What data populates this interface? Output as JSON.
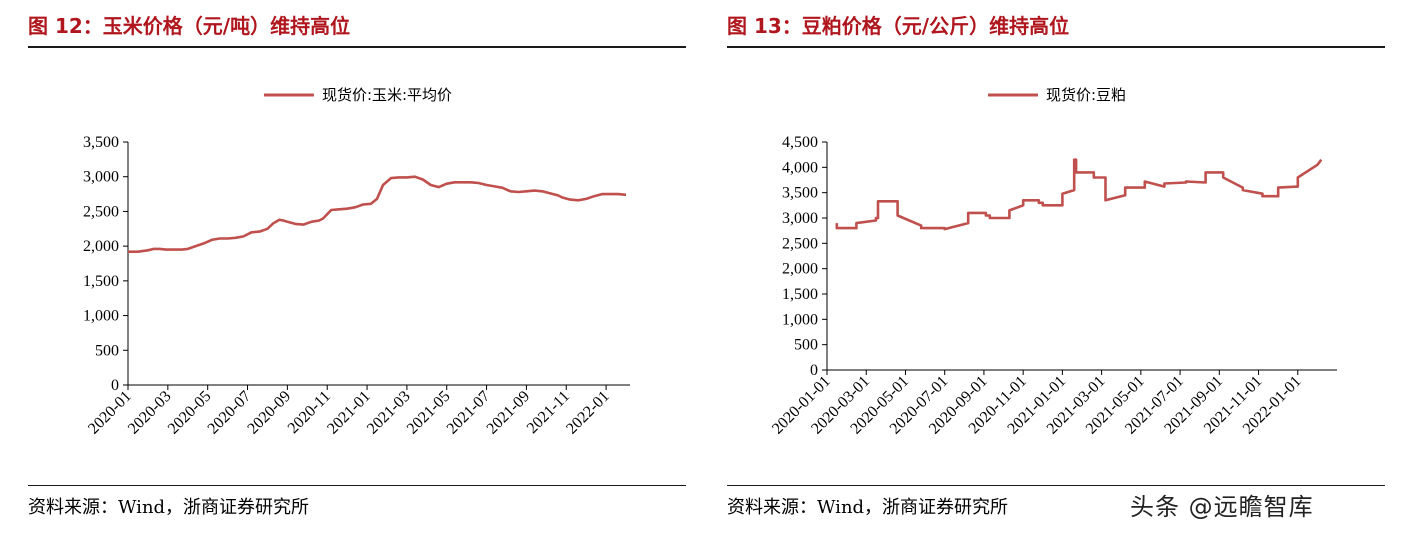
{
  "left": {
    "title": "图 12：玉米价格（元/吨）维持高位",
    "source": "资料来源：Wind，浙商证券研究所"
  },
  "right": {
    "title": "图 13：豆粕价格（元/公斤）维持高位",
    "source": "资料来源：Wind，浙商证券研究所"
  },
  "watermark": "头条 @远瞻智库",
  "colors": {
    "series": "#c0504d",
    "title": "#b0161d",
    "axis": "#000000"
  },
  "chart_data": [
    {
      "type": "line",
      "title": "",
      "legend": {
        "position": "top-center"
      },
      "ylim": [
        0,
        3500
      ],
      "yticks": [
        0,
        500,
        1000,
        1500,
        2000,
        2500,
        3000,
        3500
      ],
      "ytick_labels": [
        "0",
        "500",
        "1,000",
        "1,500",
        "2,000",
        "2,500",
        "3,000",
        "3,500"
      ],
      "xlim": [
        0,
        25.2
      ],
      "xticks": [
        0,
        2,
        4,
        6,
        8,
        10,
        12,
        14,
        16,
        18,
        20,
        22,
        24
      ],
      "xtick_labels": [
        "2020-01",
        "2020-03",
        "2020-05",
        "2020-07",
        "2020-09",
        "2020-11",
        "2021-01",
        "2021-03",
        "2021-05",
        "2021-07",
        "2021-09",
        "2021-11",
        "2022-01"
      ],
      "grid": false,
      "series": [
        {
          "name": "现货价:玉米:平均价",
          "x": [
            0,
            0.5,
            1.0,
            1.3,
            1.6,
            1.9,
            2.3,
            2.7,
            3.0,
            3.4,
            3.8,
            4.2,
            4.6,
            5.0,
            5.4,
            5.8,
            6.2,
            6.6,
            7.0,
            7.3,
            7.6,
            7.8,
            8.0,
            8.4,
            8.8,
            9.2,
            9.6,
            9.8,
            10.2,
            10.6,
            11.0,
            11.4,
            11.8,
            12.2,
            12.5,
            12.8,
            13.2,
            13.6,
            14.0,
            14.4,
            14.8,
            15.2,
            15.6,
            16.0,
            16.4,
            16.8,
            17.2,
            17.6,
            18.0,
            18.4,
            18.8,
            19.2,
            19.6,
            20.0,
            20.4,
            20.8,
            21.2,
            21.6,
            21.8,
            22.2,
            22.6,
            23.0,
            23.4,
            23.8,
            24.2,
            24.6,
            25.0
          ],
          "values": [
            1920,
            1920,
            1940,
            1960,
            1960,
            1950,
            1950,
            1950,
            1960,
            2000,
            2040,
            2090,
            2110,
            2110,
            2120,
            2140,
            2200,
            2210,
            2250,
            2330,
            2380,
            2370,
            2350,
            2320,
            2310,
            2350,
            2370,
            2400,
            2520,
            2530,
            2540,
            2560,
            2600,
            2610,
            2680,
            2880,
            2980,
            2990,
            2990,
            3000,
            2960,
            2880,
            2850,
            2900,
            2920,
            2920,
            2920,
            2910,
            2880,
            2860,
            2840,
            2790,
            2780,
            2790,
            2800,
            2790,
            2760,
            2730,
            2700,
            2670,
            2660,
            2680,
            2720,
            2750,
            2750,
            2750,
            2740
          ]
        }
      ]
    },
    {
      "type": "line",
      "title": "",
      "legend": {
        "position": "top-center"
      },
      "ylim": [
        0,
        4500
      ],
      "yticks": [
        0,
        500,
        1000,
        1500,
        2000,
        2500,
        3000,
        3500,
        4000,
        4500
      ],
      "ytick_labels": [
        "0",
        "500",
        "1,000",
        "1,500",
        "2,000",
        "2,500",
        "3,000",
        "3,500",
        "4,000",
        "4,500"
      ],
      "xlim": [
        0,
        26
      ],
      "xticks": [
        0,
        2,
        4,
        6,
        8,
        10,
        12,
        14,
        16,
        18,
        20,
        22,
        24
      ],
      "xtick_labels": [
        "2020-01-01",
        "2020-03-01",
        "2020-05-01",
        "2020-07-01",
        "2020-09-01",
        "2020-11-01",
        "2021-01-01",
        "2021-03-01",
        "2021-05-01",
        "2021-07-01",
        "2021-09-01",
        "2021-11-01",
        "2022-01-01"
      ],
      "grid": false,
      "series": [
        {
          "name": "现货价:豆粕",
          "x": [
            0.5,
            0.5,
            1.5,
            1.5,
            2.5,
            2.5,
            2.6,
            2.6,
            3.6,
            3.6,
            4.8,
            4.8,
            6.0,
            6.0,
            7.2,
            7.2,
            8.1,
            8.1,
            8.3,
            8.3,
            9.3,
            9.3,
            10.0,
            10.0,
            10.8,
            10.8,
            11.0,
            11.0,
            12.0,
            12.0,
            12.6,
            12.6,
            12.7,
            12.7,
            13.6,
            13.6,
            14.2,
            14.2,
            15.2,
            15.2,
            16.2,
            16.2,
            17.2,
            17.2,
            18.3,
            18.3,
            19.3,
            19.3,
            20.2,
            20.2,
            21.2,
            21.2,
            22.2,
            22.2,
            23.0,
            23.0,
            24.0,
            24.0,
            25.0,
            25.2
          ],
          "values": [
            2900,
            2800,
            2800,
            2900,
            2950,
            3000,
            3000,
            3330,
            3330,
            3050,
            2850,
            2800,
            2800,
            2780,
            2900,
            3100,
            3100,
            3050,
            3050,
            3000,
            3000,
            3150,
            3250,
            3350,
            3350,
            3300,
            3300,
            3250,
            3250,
            3480,
            3550,
            4150,
            4150,
            3900,
            3900,
            3800,
            3800,
            3350,
            3450,
            3600,
            3600,
            3720,
            3620,
            3680,
            3700,
            3720,
            3700,
            3900,
            3900,
            3800,
            3600,
            3550,
            3480,
            3430,
            3430,
            3600,
            3620,
            3800,
            4050,
            4150
          ]
        }
      ]
    }
  ]
}
